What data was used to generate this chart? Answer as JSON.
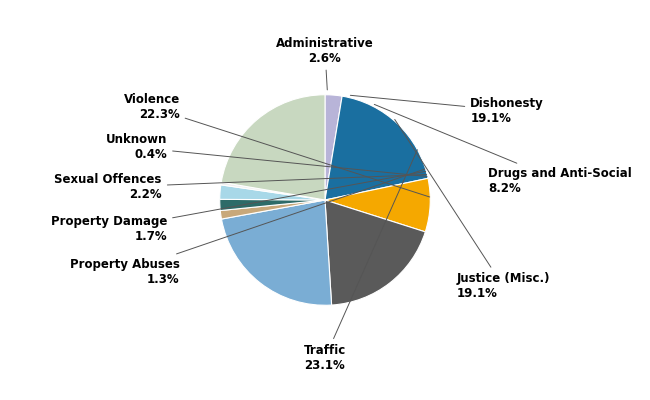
{
  "labels": [
    "Administrative",
    "Dishonesty",
    "Drugs and Anti-Social",
    "Justice (Misc.)",
    "Traffic",
    "Property Abuses",
    "Property Damage",
    "Sexual Offences",
    "Unknown",
    "Violence"
  ],
  "values": [
    2.6,
    19.1,
    8.2,
    19.1,
    23.1,
    1.3,
    1.7,
    2.2,
    0.4,
    22.3
  ],
  "colors": [
    "#b8b4d8",
    "#1a6fa0",
    "#f5a800",
    "#5a5a5a",
    "#7aadd4",
    "#c8a87a",
    "#2d6b68",
    "#a8d8e8",
    "#f0f0f0",
    "#c8d8c0"
  ],
  "background_color": "#ffffff",
  "font_size": 8.5,
  "label_configs": [
    [
      "Administrative",
      "2.6%",
      0.0,
      1.42,
      "center"
    ],
    [
      "Dishonesty",
      "19.1%",
      1.38,
      0.85,
      "left"
    ],
    [
      "Drugs and Anti-Social",
      "8.2%",
      1.55,
      0.18,
      "left"
    ],
    [
      "Justice (Misc.)",
      "19.1%",
      1.25,
      -0.82,
      "left"
    ],
    [
      "Traffic",
      "23.1%",
      0.0,
      -1.5,
      "center"
    ],
    [
      "Property Abuses",
      "1.3%",
      -1.38,
      -0.68,
      "right"
    ],
    [
      "Property Damage",
      "1.7%",
      -1.5,
      -0.28,
      "right"
    ],
    [
      "Sexual Offences",
      "2.2%",
      -1.55,
      0.12,
      "right"
    ],
    [
      "Unknown",
      "0.4%",
      -1.5,
      0.5,
      "right"
    ],
    [
      "Violence",
      "22.3%",
      -1.38,
      0.88,
      "right"
    ]
  ]
}
